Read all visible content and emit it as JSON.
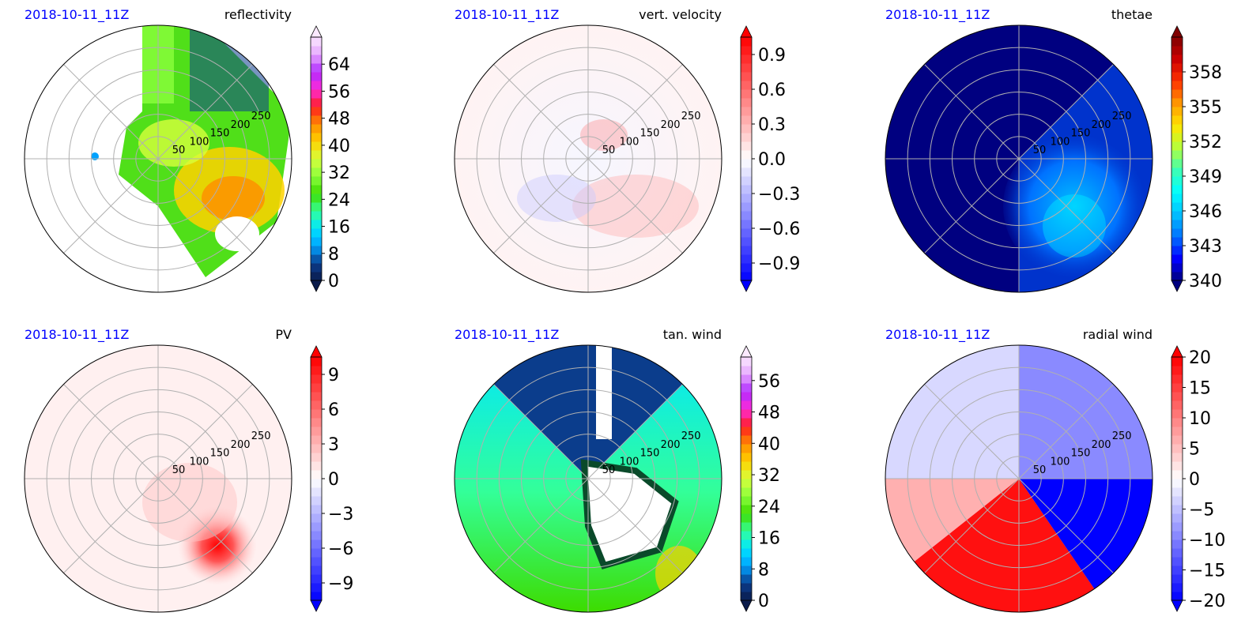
{
  "chart_data": [
    {
      "type": "heatmap",
      "projection": "polar",
      "date": "2018-10-11_11Z",
      "title": "reflectivity",
      "radius_labels": [
        "50",
        "100",
        "150",
        "200",
        "250"
      ],
      "colorbar": {
        "ticks": [
          0,
          8,
          16,
          24,
          32,
          40,
          48,
          56,
          64
        ],
        "range": [
          0,
          72
        ],
        "extend": "both",
        "colormap": [
          "#0a1a4a",
          "#0b3d8c",
          "#00a2ff",
          "#00e5ff",
          "#33ff99",
          "#3ddc00",
          "#8bff3c",
          "#d7ff3c",
          "#ffd200",
          "#ff8c00",
          "#ff1e1e",
          "#ff2bd6",
          "#b12bff",
          "#e6a6ff",
          "#fbe9ff"
        ]
      }
    },
    {
      "type": "heatmap",
      "projection": "polar",
      "date": "2018-10-11_11Z",
      "title": "vert. velocity",
      "radius_labels": [
        "50",
        "100",
        "150",
        "200",
        "250"
      ],
      "colorbar": {
        "ticks": [
          -0.9,
          -0.6,
          -0.3,
          0.0,
          0.3,
          0.6,
          0.9
        ],
        "tick_labels": [
          "−0.9",
          "−0.6",
          "−0.3",
          "0.0",
          "0.3",
          "0.6",
          "0.9"
        ],
        "range": [
          -1.05,
          1.05
        ],
        "extend": "both",
        "colormap": [
          "#0000ff",
          "#ffffff",
          "#ff0000"
        ]
      }
    },
    {
      "type": "heatmap",
      "projection": "polar",
      "date": "2018-10-11_11Z",
      "title": "thetae",
      "radius_labels": [
        "50",
        "100",
        "150",
        "200",
        "250"
      ],
      "colorbar": {
        "ticks": [
          340,
          343,
          346,
          349,
          352,
          355,
          358
        ],
        "range": [
          340,
          361
        ],
        "extend": "both",
        "colormap": [
          "#000080",
          "#0000ff",
          "#0072ff",
          "#00bfff",
          "#00ffff",
          "#3cffb4",
          "#b4ff3c",
          "#ffe600",
          "#ff9900",
          "#ff3300",
          "#cc0000",
          "#800000"
        ]
      }
    },
    {
      "type": "heatmap",
      "projection": "polar",
      "date": "2018-10-11_11Z",
      "title": "PV",
      "radius_labels": [
        "50",
        "100",
        "150",
        "200",
        "250"
      ],
      "colorbar": {
        "ticks": [
          -9,
          -6,
          -3,
          0,
          3,
          6,
          9
        ],
        "tick_labels": [
          "−9",
          "−6",
          "−3",
          "0",
          "3",
          "6",
          "9"
        ],
        "range": [
          -10.5,
          10.5
        ],
        "extend": "both",
        "colormap": [
          "#0000ff",
          "#ffffff",
          "#ff0000"
        ]
      }
    },
    {
      "type": "heatmap",
      "projection": "polar",
      "date": "2018-10-11_11Z",
      "title": "tan. wind",
      "radius_labels": [
        "50",
        "100",
        "150",
        "200",
        "250"
      ],
      "colorbar": {
        "ticks": [
          0,
          8,
          16,
          24,
          32,
          40,
          48,
          56
        ],
        "range": [
          0,
          62
        ],
        "extend": "both",
        "colormap": [
          "#0a1a4a",
          "#0b3d8c",
          "#00a2ff",
          "#00e5ff",
          "#33ff99",
          "#3ddc00",
          "#8bff3c",
          "#d7ff3c",
          "#ffd200",
          "#ff8c00",
          "#ff1e1e",
          "#ff2bd6",
          "#b12bff",
          "#e6a6ff",
          "#fbe9ff"
        ]
      }
    },
    {
      "type": "heatmap",
      "projection": "polar",
      "date": "2018-10-11_11Z",
      "title": "radial wind",
      "radius_labels": [
        "50",
        "100",
        "150",
        "200",
        "250"
      ],
      "colorbar": {
        "ticks": [
          -20,
          -15,
          -10,
          -5,
          0,
          5,
          10,
          15,
          20
        ],
        "tick_labels": [
          "−20",
          "−15",
          "−10",
          "−5",
          "0",
          "5",
          "10",
          "15",
          "20"
        ],
        "range": [
          -20,
          20
        ],
        "extend": "both",
        "colormap": [
          "#0000ff",
          "#ffffff",
          "#ff0000"
        ]
      }
    }
  ]
}
